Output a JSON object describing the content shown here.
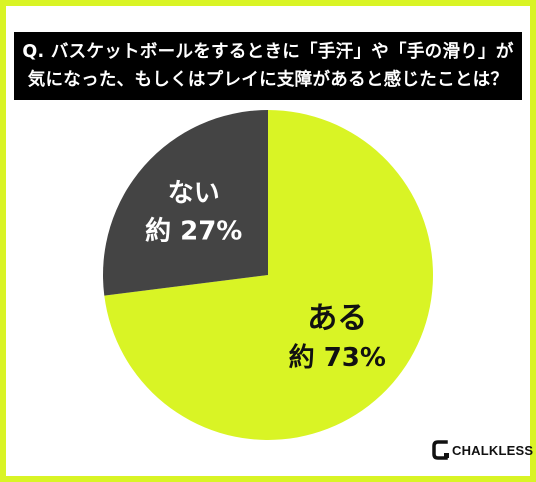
{
  "title": {
    "line1": "Q. バスケットボールをするときに「手汗」や「手の滑り」が",
    "line2": "気になった、もしくはプレイに支障があると感じたことは？"
  },
  "chart_data": {
    "type": "pie",
    "slices": [
      {
        "label": "ある",
        "value_text": "約 73%",
        "value": 73,
        "color": "#d9f425"
      },
      {
        "label": "ない",
        "value_text": "約 27%",
        "value": 27,
        "color": "#444444"
      }
    ]
  },
  "brand": {
    "name": "CHALKLESS"
  },
  "colors": {
    "accent": "#d9f425",
    "dark": "#444444",
    "header_bg": "#000000"
  }
}
